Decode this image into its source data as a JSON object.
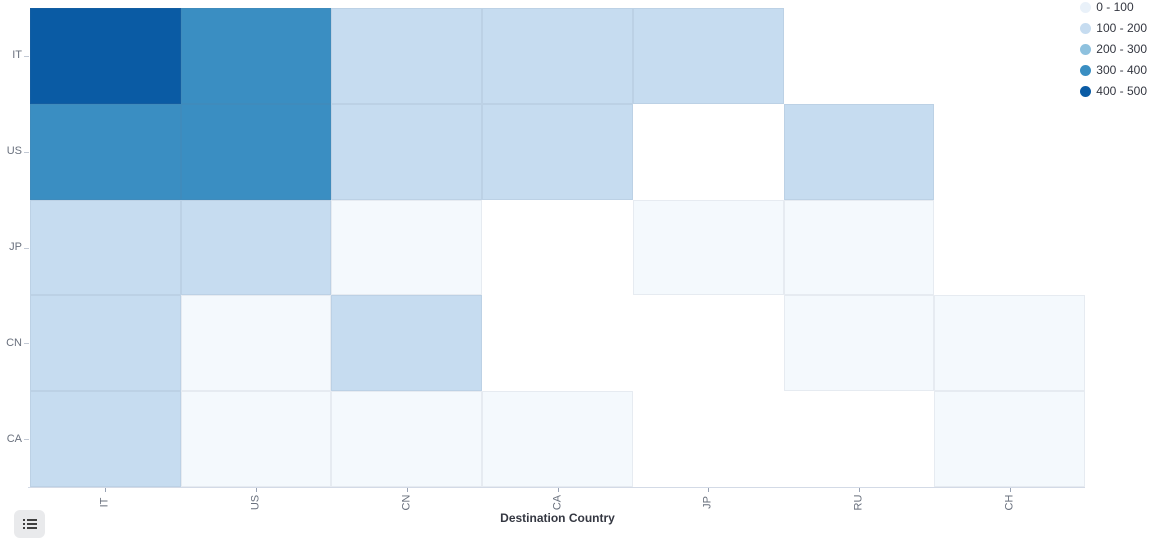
{
  "chart_data": {
    "type": "heatmap",
    "xlabel": "Destination Country",
    "x_categories": [
      "IT",
      "US",
      "CN",
      "CA",
      "JP",
      "RU",
      "CH"
    ],
    "y_categories": [
      "IT",
      "US",
      "JP",
      "CN",
      "CA"
    ],
    "buckets": [
      {
        "label": "0 - 100",
        "cell_color": "#f4f9fd",
        "legend_color": "#e9f1f9"
      },
      {
        "label": "100 - 200",
        "cell_color": "#c6dcf0",
        "legend_color": "#c6dcf0"
      },
      {
        "label": "200 - 300",
        "cell_color": "#8ec1de",
        "legend_color": "#8ec1de"
      },
      {
        "label": "300 - 400",
        "cell_color": "#3a8ec2",
        "legend_color": "#3a8ec2"
      },
      {
        "label": "400 - 500",
        "cell_color": "#0a5ba4",
        "legend_color": "#0a5ba4"
      }
    ],
    "missing_color": "#ffffff",
    "legend_position": "top-right",
    "cells": [
      [
        "400 - 500",
        "300 - 400",
        "100 - 200",
        "100 - 200",
        "100 - 200",
        null,
        null
      ],
      [
        "300 - 400",
        "300 - 400",
        "100 - 200",
        "100 - 200",
        null,
        "100 - 200",
        null
      ],
      [
        "100 - 200",
        "100 - 200",
        "0 - 100",
        null,
        "0 - 100",
        "0 - 100",
        null
      ],
      [
        "100 - 200",
        "0 - 100",
        "100 - 200",
        null,
        null,
        "0 - 100",
        "0 - 100"
      ],
      [
        "100 - 200",
        "0 - 100",
        "0 - 100",
        "0 - 100",
        null,
        null,
        "0 - 100"
      ]
    ]
  },
  "toolbar": {
    "legend_toggle_icon": "list-icon"
  }
}
